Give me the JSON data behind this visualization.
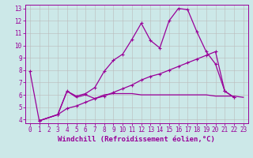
{
  "series": [
    {
      "x": [
        0,
        1,
        3,
        4,
        5,
        6,
        7,
        8,
        9,
        10,
        11,
        12,
        13,
        14,
        15,
        16,
        17,
        18,
        19,
        20,
        21,
        22
      ],
      "y": [
        7.9,
        3.9,
        4.4,
        6.3,
        5.9,
        6.1,
        6.6,
        7.9,
        8.8,
        9.3,
        10.5,
        11.8,
        10.4,
        9.8,
        12.0,
        13.0,
        12.9,
        11.1,
        9.5,
        8.5,
        6.3,
        5.8
      ],
      "marker": true,
      "linewidth": 0.9
    },
    {
      "x": [
        1,
        3,
        4,
        5,
        6,
        7,
        8,
        9,
        10,
        11,
        12,
        13,
        14,
        15,
        16,
        17,
        18,
        19,
        20,
        21,
        22,
        23
      ],
      "y": [
        3.9,
        4.4,
        6.3,
        5.8,
        6.0,
        5.7,
        6.0,
        6.1,
        6.1,
        6.1,
        6.0,
        6.0,
        6.0,
        6.0,
        6.0,
        6.0,
        6.0,
        6.0,
        5.9,
        5.9,
        5.9,
        5.8
      ],
      "marker": false,
      "linewidth": 0.9
    },
    {
      "x": [
        1,
        3,
        4,
        5,
        6,
        7,
        8,
        9,
        10,
        11,
        12,
        13,
        14,
        15,
        16,
        17,
        18,
        19,
        20,
        21,
        22
      ],
      "y": [
        3.9,
        4.4,
        4.9,
        5.1,
        5.4,
        5.7,
        5.9,
        6.2,
        6.5,
        6.8,
        7.2,
        7.5,
        7.7,
        8.0,
        8.3,
        8.6,
        8.9,
        9.2,
        9.5,
        6.3,
        5.8
      ],
      "marker": true,
      "linewidth": 0.9
    }
  ],
  "xlim": [
    -0.5,
    23.5
  ],
  "ylim": [
    3.7,
    13.3
  ],
  "xticks": [
    0,
    1,
    2,
    3,
    4,
    5,
    6,
    7,
    8,
    9,
    10,
    11,
    12,
    13,
    14,
    15,
    16,
    17,
    18,
    19,
    20,
    21,
    22,
    23
  ],
  "yticks": [
    4,
    5,
    6,
    7,
    8,
    9,
    10,
    11,
    12,
    13
  ],
  "xlabel": "Windchill (Refroidissement éolien,°C)",
  "background_color": "#cce8e8",
  "line_color": "#990099",
  "grid_color": "#bbbbbb",
  "tick_label_fontsize": 5.5,
  "xlabel_fontsize": 6.5
}
